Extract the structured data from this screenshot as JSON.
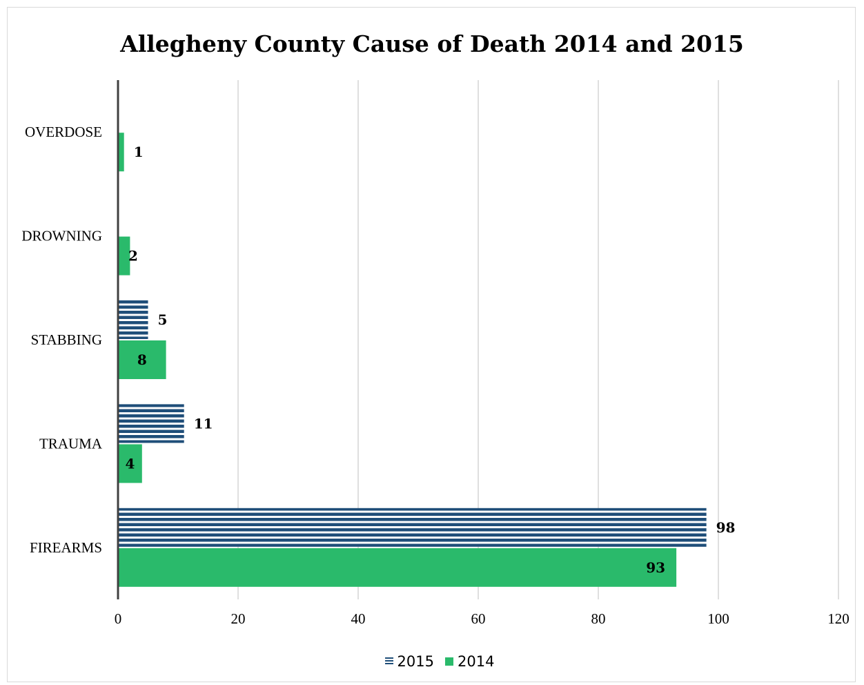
{
  "chart_data": {
    "type": "bar",
    "orientation": "horizontal",
    "title": "Allegheny County Cause of Death 2014 and 2015",
    "categories": [
      "OVERDOSE",
      "DROWNING",
      "STABBING",
      "TRAUMA",
      "FIREARMS"
    ],
    "series": [
      {
        "name": "2015",
        "values": [
          null,
          null,
          5,
          11,
          98
        ],
        "color": "#1f4e79",
        "pattern": "horizontal-stripes"
      },
      {
        "name": "2014",
        "values": [
          1,
          2,
          8,
          4,
          93
        ],
        "color": "#2aba6b",
        "pattern": "solid"
      }
    ],
    "xlim": [
      0,
      120
    ],
    "xticks": [
      0,
      20,
      40,
      60,
      80,
      100,
      120
    ],
    "grid": true,
    "legend_position": "bottom"
  }
}
